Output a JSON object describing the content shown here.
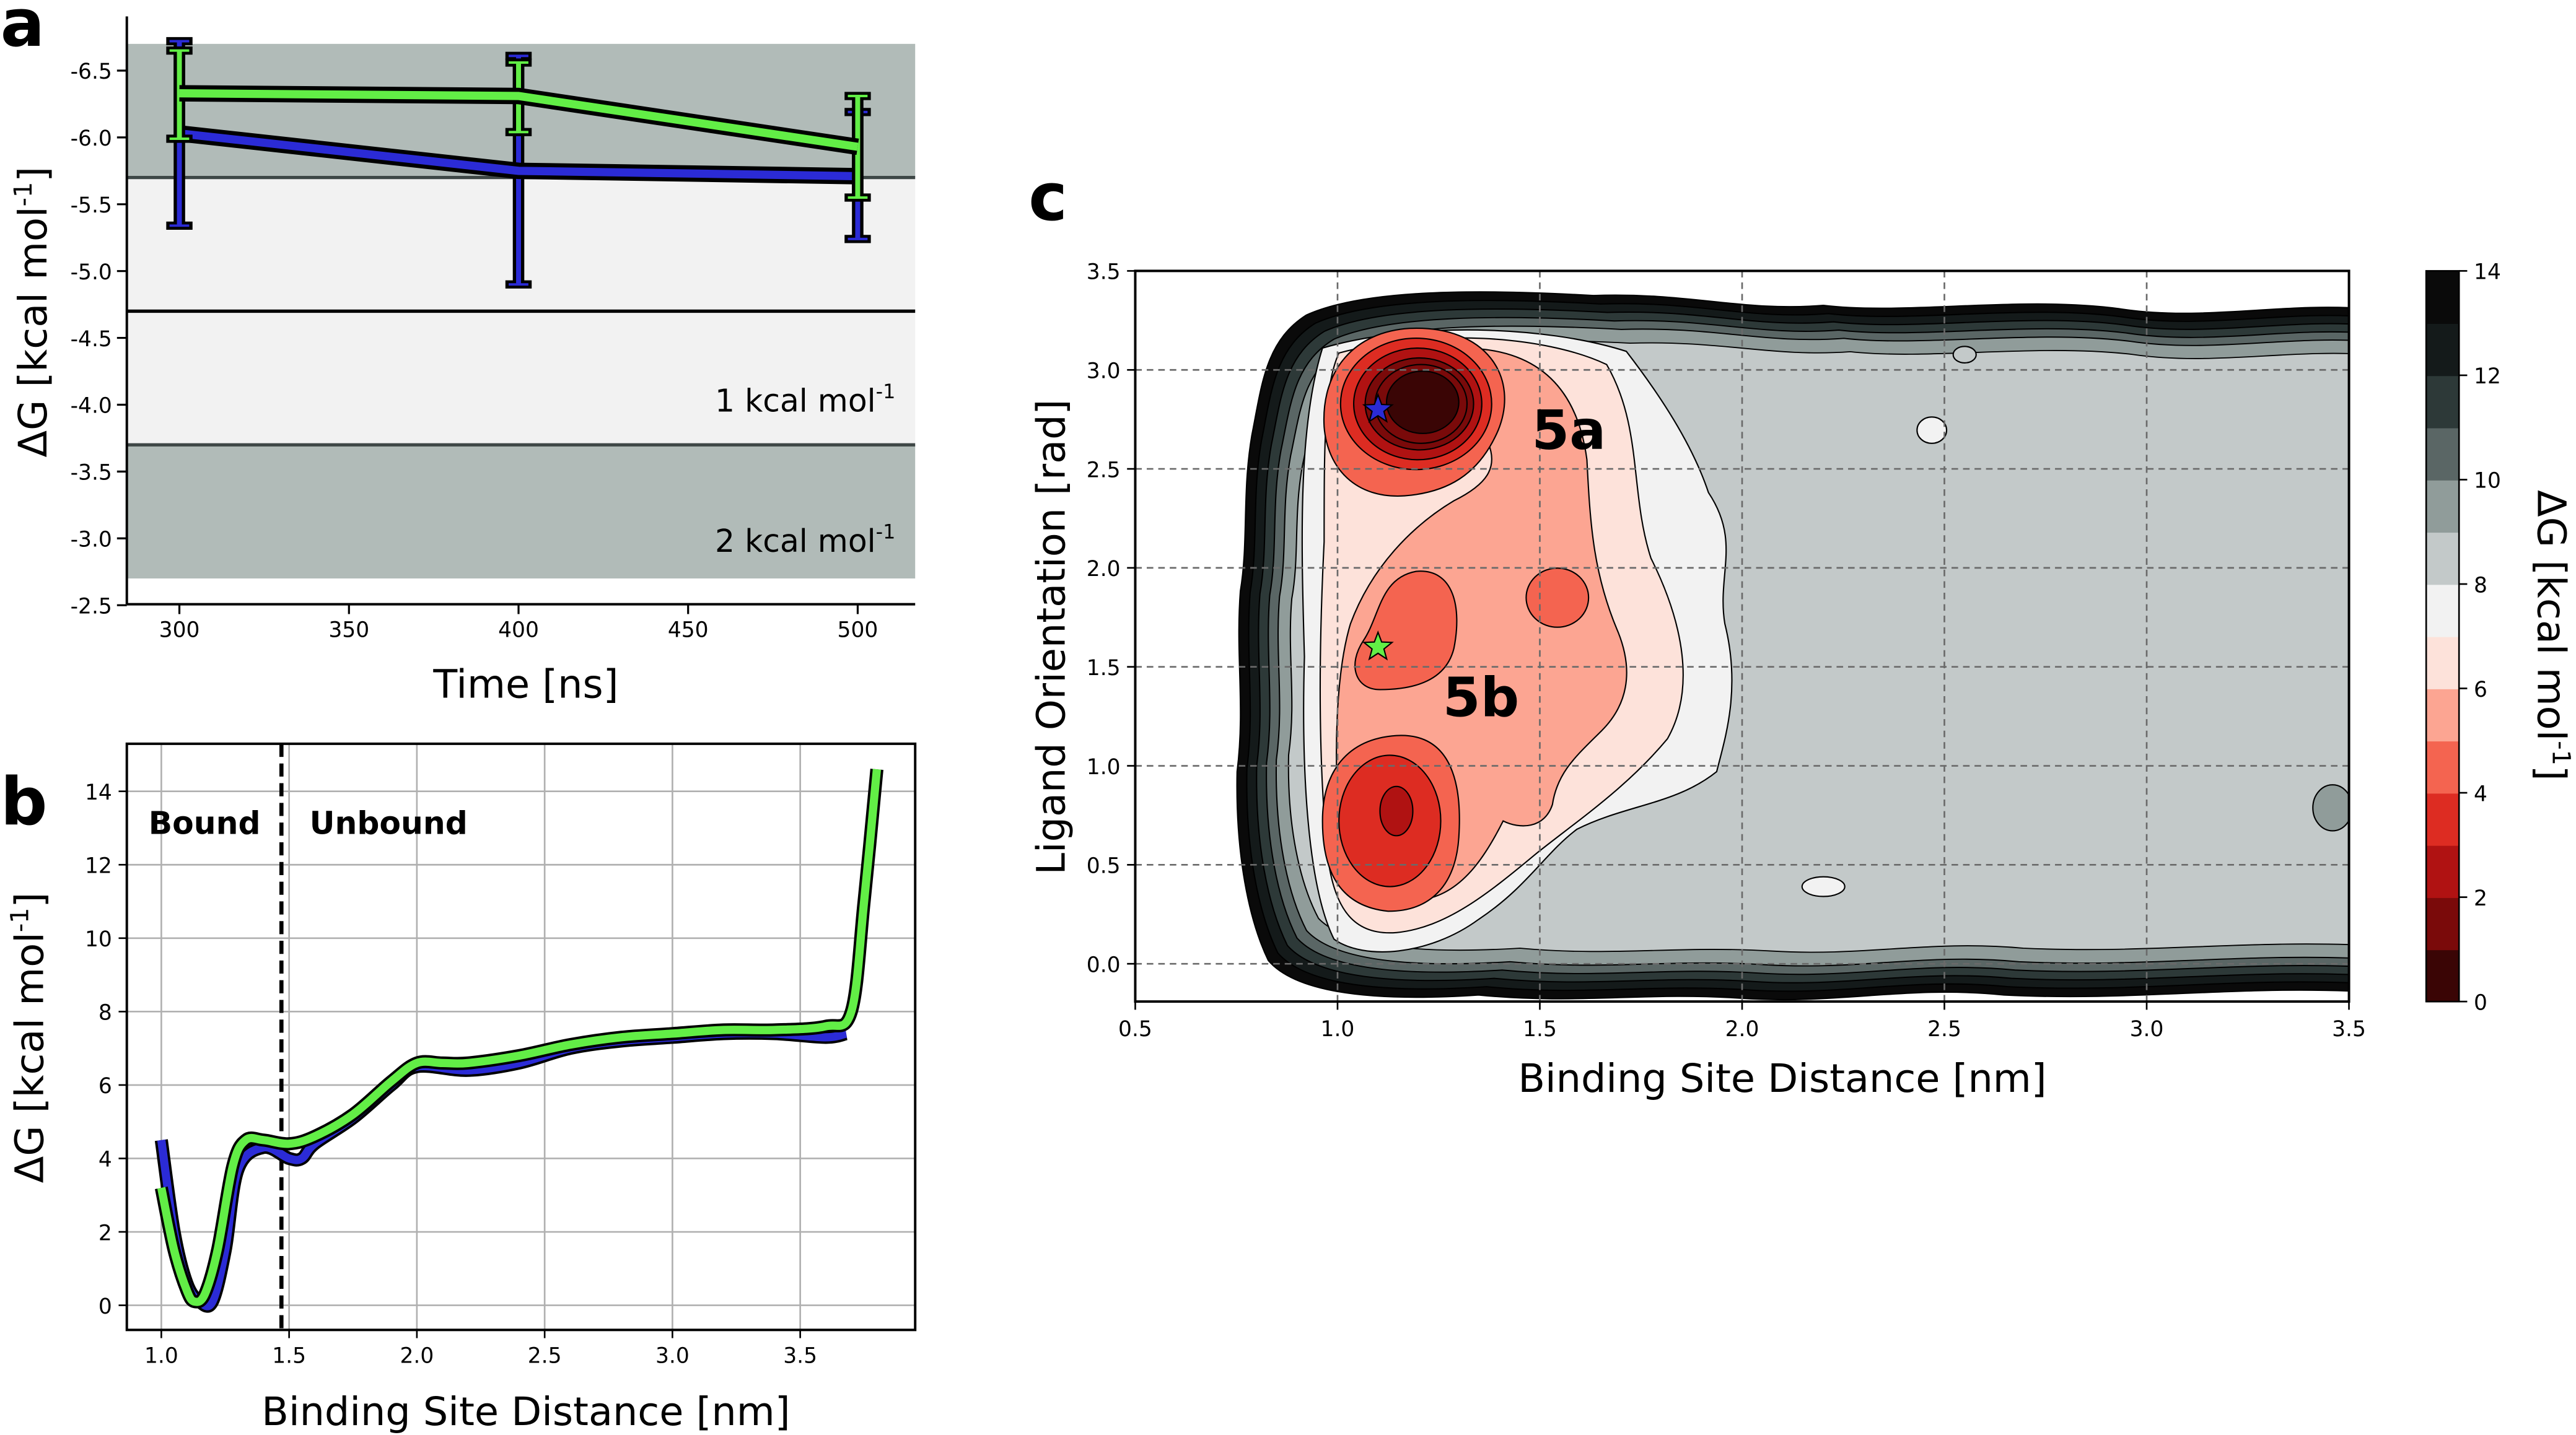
{
  "panels": {
    "a": "a",
    "b": "b",
    "c": "c"
  },
  "chart_data": [
    {
      "panel": "a",
      "type": "line",
      "title": "",
      "xlabel": "Time [ns]",
      "ylabel": {
        "main": "ΔG [kcal mol",
        "sup": "-1",
        "end": "]"
      },
      "xlim": [
        283.5,
        516
      ],
      "ylim": [
        -6.5,
        -2.5
      ],
      "y_inverted": true,
      "x_ticks": [
        "300",
        "350",
        "400",
        "450",
        "500"
      ],
      "y_ticks": [
        "-6.5",
        "-6.0",
        "-5.5",
        "-5.0",
        "-4.5",
        "-4.0",
        "-3.5",
        "-3.0",
        "-2.5"
      ],
      "bands": [
        {
          "from": -6.7,
          "to": -5.7,
          "color": "#b1bbb8"
        },
        {
          "from": -5.7,
          "to": -4.7,
          "color": "#f2f2f2"
        },
        {
          "from": -4.7,
          "to": -3.7,
          "color": "#f2f2f2"
        },
        {
          "from": -3.7,
          "to": -2.7,
          "color": "#b1bbb8"
        }
      ],
      "hlines": [
        {
          "y": -5.7,
          "color": "#3e4746"
        },
        {
          "y": -4.7,
          "color": "#000000"
        },
        {
          "y": -3.7,
          "color": "#3e4746"
        }
      ],
      "annotations": [
        {
          "text": "1 kcal mol",
          "sup": "-1",
          "y": -3.95
        },
        {
          "text": "2 kcal mol",
          "sup": "-1",
          "y": -2.9
        }
      ],
      "series": [
        {
          "name": "blue",
          "color": "#2b2bd6",
          "x": [
            300,
            400,
            500
          ],
          "y": [
            -6.03,
            -5.75,
            -5.71
          ],
          "err_low": [
            -5.34,
            -4.9,
            -5.24
          ],
          "err_high": [
            -6.72,
            -6.61,
            -6.19
          ]
        },
        {
          "name": "green",
          "color": "#62ee46",
          "x": [
            300,
            400,
            500
          ],
          "y": [
            -6.33,
            -6.31,
            -5.93
          ],
          "err_low": [
            -5.99,
            -6.04,
            -5.55
          ],
          "err_high": [
            -6.65,
            -6.56,
            -6.31
          ]
        }
      ],
      "grid": false
    },
    {
      "panel": "b",
      "type": "line",
      "title": "",
      "xlabel": "Binding Site Distance [nm]",
      "ylabel": {
        "main": "ΔG [kcal mol",
        "sup": "-1",
        "end": "]"
      },
      "xlim": [
        0.87,
        3.95
      ],
      "ylim": [
        -0.7,
        15.3
      ],
      "x_ticks": [
        "1.0",
        "1.5",
        "2.0",
        "2.5",
        "3.0",
        "3.5"
      ],
      "y_ticks": [
        "0",
        "2",
        "4",
        "6",
        "8",
        "10",
        "12",
        "14"
      ],
      "grid": true,
      "vline": {
        "x": 1.47,
        "style": "dashed"
      },
      "region_labels": [
        {
          "text": "Bound",
          "x": 0.95
        },
        {
          "text": "Unbound",
          "x": 1.58
        }
      ],
      "series": [
        {
          "name": "blue",
          "color": "#2b2bd6",
          "x": [
            1.0,
            1.05,
            1.1,
            1.15,
            1.2,
            1.25,
            1.3,
            1.4,
            1.5,
            1.55,
            1.6,
            1.75,
            1.9,
            2.0,
            2.2,
            2.4,
            2.6,
            2.8,
            3.0,
            3.2,
            3.4,
            3.6,
            3.68
          ],
          "y": [
            4.5,
            2.0,
            0.6,
            0.1,
            0.1,
            1.5,
            3.7,
            4.3,
            4.0,
            4.0,
            4.4,
            5.1,
            6.0,
            6.5,
            6.4,
            6.6,
            7.0,
            7.2,
            7.3,
            7.4,
            7.4,
            7.3,
            7.4
          ]
        },
        {
          "name": "green",
          "color": "#62ee46",
          "x": [
            1.0,
            1.05,
            1.1,
            1.13,
            1.17,
            1.22,
            1.28,
            1.33,
            1.4,
            1.5,
            1.6,
            1.75,
            1.9,
            2.0,
            2.1,
            2.2,
            2.4,
            2.6,
            2.8,
            3.0,
            3.2,
            3.4,
            3.6,
            3.7,
            3.75,
            3.8
          ],
          "y": [
            3.2,
            1.5,
            0.4,
            0.1,
            0.3,
            1.5,
            3.8,
            4.5,
            4.5,
            4.4,
            4.6,
            5.2,
            6.1,
            6.6,
            6.6,
            6.6,
            6.8,
            7.1,
            7.3,
            7.4,
            7.5,
            7.5,
            7.6,
            8.0,
            11.0,
            14.6
          ]
        }
      ]
    },
    {
      "panel": "c",
      "type": "heatmap",
      "subtype": "filled-contour",
      "title": "",
      "xlabel": "Binding Site Distance [nm]",
      "ylabel": "Ligand Orientation [rad]",
      "xlim": [
        0.5,
        3.5
      ],
      "ylim": [
        -0.19,
        3.5
      ],
      "x_ticks": [
        "0.5",
        "1.0",
        "1.5",
        "2.0",
        "2.5",
        "3.0",
        "3.5"
      ],
      "y_ticks": [
        "0.0",
        "0.5",
        "1.0",
        "1.5",
        "2.0",
        "2.5",
        "3.0",
        "3.5"
      ],
      "grid": true,
      "levels": [
        0,
        1,
        2,
        3,
        4,
        5,
        6,
        7,
        8,
        9,
        10,
        11,
        12,
        13,
        14
      ],
      "level_colors": [
        "#3a0505",
        "#7a0a0a",
        "#b01212",
        "#dd2c22",
        "#f46450",
        "#fca592",
        "#fde2da",
        "#f2f2f2",
        "#c3c9c9",
        "#909c9a",
        "#5a6665",
        "#2d3938",
        "#141a1a",
        "#0a0a0a"
      ],
      "colorbar": {
        "label": {
          "main": "ΔG [kcal mol",
          "sup": "-1",
          "end": "]"
        },
        "ticks": [
          "0",
          "2",
          "4",
          "6",
          "8",
          "10",
          "12",
          "14"
        ],
        "range": [
          0,
          14
        ]
      },
      "minima": [
        {
          "label": "5a",
          "x": 1.1,
          "y": 2.8,
          "marker": "star",
          "color": "#2b2bd6",
          "label_x": 1.48,
          "label_y": 2.6
        },
        {
          "label": "5b",
          "x": 1.1,
          "y": 1.6,
          "marker": "star",
          "color": "#62ee46",
          "label_x": 1.26,
          "label_y": 1.25
        }
      ]
    }
  ]
}
